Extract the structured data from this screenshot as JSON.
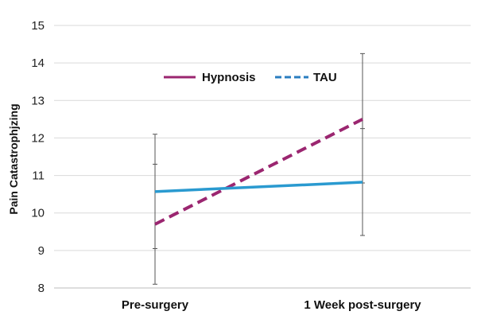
{
  "chart_data": {
    "type": "line",
    "title": "",
    "xlabel": "",
    "ylabel": "Pain Catastrophjzing",
    "categories": [
      "Pre-surgery",
      "1 Week post-surgery"
    ],
    "ylim": [
      8,
      15
    ],
    "yticks": [
      8,
      9,
      10,
      11,
      12,
      13,
      14,
      15
    ],
    "grid": "horizontal",
    "legend_position": "top-center",
    "series": [
      {
        "name": "Hypnosis",
        "values": [
          9.7,
          12.5
        ],
        "error_low": [
          8.1,
          10.8
        ],
        "error_high": [
          11.3,
          14.25
        ],
        "color": "#9b2670",
        "style": "dashed"
      },
      {
        "name": "TAU",
        "values": [
          10.57,
          10.82
        ],
        "error_low": [
          9.05,
          9.4
        ],
        "error_high": [
          12.1,
          12.25
        ],
        "color": "#2a9ad0",
        "style": "solid"
      }
    ],
    "legend": [
      {
        "label": "Hypnosis",
        "color": "#9b2670",
        "style": "solid"
      },
      {
        "label": "TAU",
        "color": "#2a7ec0",
        "style": "dashed"
      }
    ]
  }
}
